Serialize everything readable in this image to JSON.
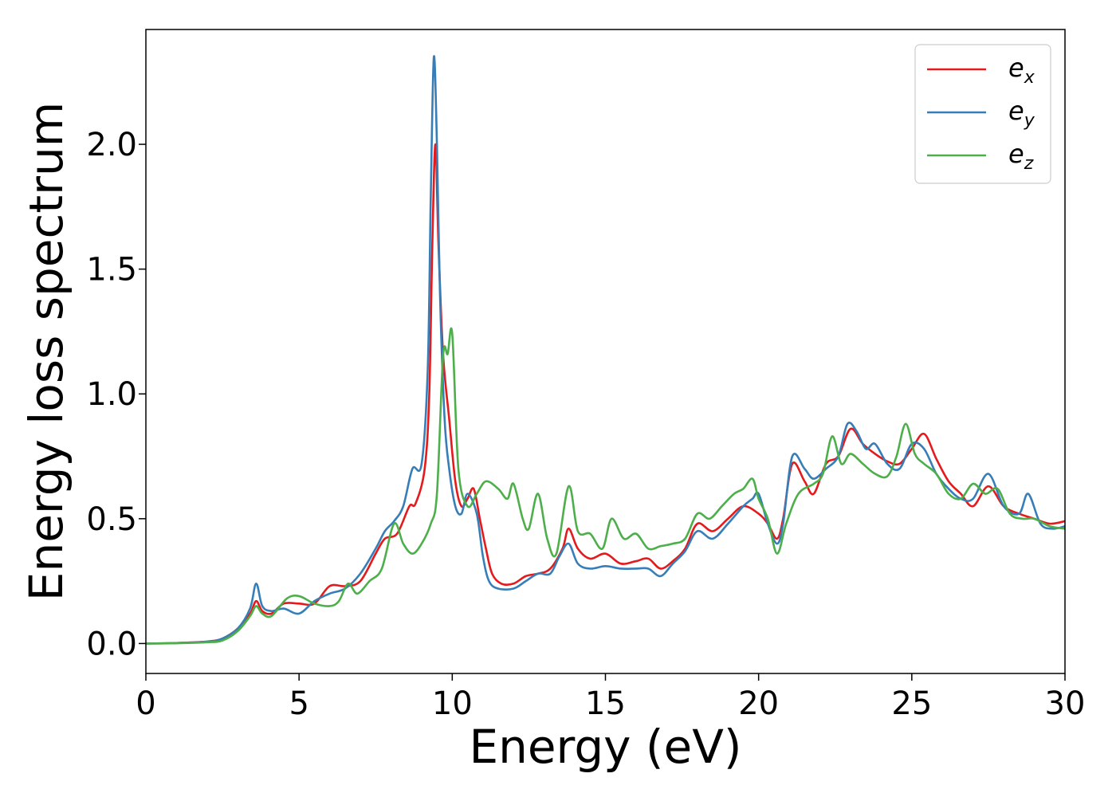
{
  "chart_data": {
    "type": "line",
    "xlabel": "Energy (eV)",
    "ylabel": "Energy loss spectrum",
    "xlim": [
      0,
      30
    ],
    "ylim": [
      -0.12,
      2.46
    ],
    "xticks": [
      0,
      5,
      10,
      15,
      20,
      25,
      30
    ],
    "xtick_labels": [
      "0",
      "5",
      "10",
      "15",
      "20",
      "25",
      "30"
    ],
    "yticks": [
      0.0,
      0.5,
      1.0,
      1.5,
      2.0
    ],
    "ytick_labels": [
      "0.0",
      "0.5",
      "1.0",
      "1.5",
      "2.0"
    ],
    "grid": false,
    "legend_position": "top-right",
    "series": [
      {
        "name": "e",
        "subscript": "x",
        "color": "#e41a1c",
        "points": [
          [
            0,
            0
          ],
          [
            1,
            0.002
          ],
          [
            2,
            0.008
          ],
          [
            2.5,
            0.02
          ],
          [
            3,
            0.06
          ],
          [
            3.4,
            0.12
          ],
          [
            3.6,
            0.17
          ],
          [
            3.8,
            0.13
          ],
          [
            4.1,
            0.12
          ],
          [
            4.5,
            0.16
          ],
          [
            5,
            0.16
          ],
          [
            5.5,
            0.16
          ],
          [
            6,
            0.23
          ],
          [
            6.5,
            0.23
          ],
          [
            7,
            0.25
          ],
          [
            7.5,
            0.36
          ],
          [
            7.8,
            0.42
          ],
          [
            8.2,
            0.44
          ],
          [
            8.6,
            0.55
          ],
          [
            8.8,
            0.56
          ],
          [
            9.1,
            0.7
          ],
          [
            9.25,
            1.0
          ],
          [
            9.35,
            1.6
          ],
          [
            9.45,
            2.0
          ],
          [
            9.55,
            1.6
          ],
          [
            9.7,
            1.16
          ],
          [
            9.9,
            0.9
          ],
          [
            10.1,
            0.65
          ],
          [
            10.3,
            0.55
          ],
          [
            10.5,
            0.58
          ],
          [
            10.7,
            0.62
          ],
          [
            10.9,
            0.5
          ],
          [
            11.1,
            0.38
          ],
          [
            11.3,
            0.28
          ],
          [
            11.6,
            0.24
          ],
          [
            12.0,
            0.24
          ],
          [
            12.4,
            0.27
          ],
          [
            12.8,
            0.28
          ],
          [
            13.2,
            0.3
          ],
          [
            13.6,
            0.38
          ],
          [
            13.8,
            0.46
          ],
          [
            14.1,
            0.38
          ],
          [
            14.5,
            0.34
          ],
          [
            15,
            0.36
          ],
          [
            15.5,
            0.32
          ],
          [
            16,
            0.33
          ],
          [
            16.4,
            0.34
          ],
          [
            16.8,
            0.3
          ],
          [
            17.2,
            0.33
          ],
          [
            17.6,
            0.38
          ],
          [
            18,
            0.48
          ],
          [
            18.5,
            0.45
          ],
          [
            19,
            0.5
          ],
          [
            19.5,
            0.55
          ],
          [
            20,
            0.52
          ],
          [
            20.3,
            0.48
          ],
          [
            20.6,
            0.42
          ],
          [
            20.8,
            0.5
          ],
          [
            21.1,
            0.72
          ],
          [
            21.5,
            0.65
          ],
          [
            21.8,
            0.6
          ],
          [
            22.2,
            0.72
          ],
          [
            22.6,
            0.75
          ],
          [
            23.0,
            0.86
          ],
          [
            23.4,
            0.8
          ],
          [
            23.8,
            0.76
          ],
          [
            24.2,
            0.73
          ],
          [
            24.6,
            0.72
          ],
          [
            25.0,
            0.78
          ],
          [
            25.4,
            0.84
          ],
          [
            25.8,
            0.74
          ],
          [
            26.2,
            0.65
          ],
          [
            26.6,
            0.6
          ],
          [
            27.0,
            0.55
          ],
          [
            27.5,
            0.63
          ],
          [
            28,
            0.55
          ],
          [
            28.5,
            0.52
          ],
          [
            29,
            0.5
          ],
          [
            29.5,
            0.48
          ],
          [
            30,
            0.49
          ]
        ]
      },
      {
        "name": "e",
        "subscript": "y",
        "color": "#377eb8",
        "points": [
          [
            0,
            0
          ],
          [
            1,
            0.002
          ],
          [
            2,
            0.007
          ],
          [
            2.5,
            0.02
          ],
          [
            3,
            0.06
          ],
          [
            3.4,
            0.14
          ],
          [
            3.6,
            0.24
          ],
          [
            3.8,
            0.15
          ],
          [
            4.1,
            0.13
          ],
          [
            4.5,
            0.14
          ],
          [
            5,
            0.12
          ],
          [
            5.5,
            0.17
          ],
          [
            6,
            0.2
          ],
          [
            6.5,
            0.22
          ],
          [
            7,
            0.28
          ],
          [
            7.5,
            0.38
          ],
          [
            7.8,
            0.45
          ],
          [
            8.1,
            0.49
          ],
          [
            8.4,
            0.55
          ],
          [
            8.7,
            0.7
          ],
          [
            9.0,
            0.72
          ],
          [
            9.2,
            1.1
          ],
          [
            9.3,
            1.8
          ],
          [
            9.4,
            2.35
          ],
          [
            9.5,
            2.0
          ],
          [
            9.6,
            1.4
          ],
          [
            9.75,
            0.9
          ],
          [
            9.9,
            0.7
          ],
          [
            10.1,
            0.55
          ],
          [
            10.3,
            0.52
          ],
          [
            10.5,
            0.6
          ],
          [
            10.8,
            0.52
          ],
          [
            11.0,
            0.35
          ],
          [
            11.2,
            0.25
          ],
          [
            11.5,
            0.22
          ],
          [
            12.0,
            0.22
          ],
          [
            12.4,
            0.25
          ],
          [
            12.8,
            0.28
          ],
          [
            13.2,
            0.28
          ],
          [
            13.5,
            0.35
          ],
          [
            13.8,
            0.4
          ],
          [
            14.1,
            0.32
          ],
          [
            14.5,
            0.3
          ],
          [
            15,
            0.31
          ],
          [
            15.5,
            0.3
          ],
          [
            16,
            0.3
          ],
          [
            16.4,
            0.3
          ],
          [
            16.8,
            0.27
          ],
          [
            17.2,
            0.32
          ],
          [
            17.6,
            0.37
          ],
          [
            18,
            0.45
          ],
          [
            18.5,
            0.42
          ],
          [
            19,
            0.48
          ],
          [
            19.5,
            0.55
          ],
          [
            19.8,
            0.58
          ],
          [
            20,
            0.6
          ],
          [
            20.3,
            0.48
          ],
          [
            20.6,
            0.4
          ],
          [
            20.8,
            0.48
          ],
          [
            21.1,
            0.75
          ],
          [
            21.5,
            0.7
          ],
          [
            21.8,
            0.66
          ],
          [
            22.2,
            0.7
          ],
          [
            22.6,
            0.75
          ],
          [
            22.9,
            0.88
          ],
          [
            23.2,
            0.85
          ],
          [
            23.5,
            0.78
          ],
          [
            23.8,
            0.8
          ],
          [
            24.2,
            0.72
          ],
          [
            24.6,
            0.7
          ],
          [
            25.0,
            0.8
          ],
          [
            25.4,
            0.78
          ],
          [
            25.8,
            0.68
          ],
          [
            26.2,
            0.62
          ],
          [
            26.6,
            0.58
          ],
          [
            27.0,
            0.58
          ],
          [
            27.5,
            0.68
          ],
          [
            28,
            0.55
          ],
          [
            28.5,
            0.52
          ],
          [
            28.8,
            0.6
          ],
          [
            29.2,
            0.48
          ],
          [
            29.6,
            0.46
          ],
          [
            30,
            0.47
          ]
        ]
      },
      {
        "name": "e",
        "subscript": "z",
        "color": "#4daf4a",
        "points": [
          [
            0,
            0
          ],
          [
            1,
            0.001
          ],
          [
            2,
            0.005
          ],
          [
            2.5,
            0.012
          ],
          [
            3,
            0.05
          ],
          [
            3.4,
            0.11
          ],
          [
            3.6,
            0.15
          ],
          [
            3.8,
            0.12
          ],
          [
            4.1,
            0.11
          ],
          [
            4.6,
            0.18
          ],
          [
            5,
            0.19
          ],
          [
            5.5,
            0.16
          ],
          [
            6,
            0.15
          ],
          [
            6.3,
            0.17
          ],
          [
            6.6,
            0.24
          ],
          [
            6.9,
            0.2
          ],
          [
            7.3,
            0.25
          ],
          [
            7.7,
            0.3
          ],
          [
            8.1,
            0.48
          ],
          [
            8.4,
            0.4
          ],
          [
            8.7,
            0.36
          ],
          [
            9.0,
            0.4
          ],
          [
            9.3,
            0.48
          ],
          [
            9.5,
            0.6
          ],
          [
            9.7,
            1.15
          ],
          [
            9.85,
            1.16
          ],
          [
            10.0,
            1.24
          ],
          [
            10.2,
            0.7
          ],
          [
            10.5,
            0.55
          ],
          [
            10.8,
            0.6
          ],
          [
            11.1,
            0.65
          ],
          [
            11.5,
            0.62
          ],
          [
            11.8,
            0.58
          ],
          [
            12.0,
            0.64
          ],
          [
            12.3,
            0.5
          ],
          [
            12.5,
            0.46
          ],
          [
            12.8,
            0.6
          ],
          [
            13.1,
            0.42
          ],
          [
            13.4,
            0.36
          ],
          [
            13.8,
            0.63
          ],
          [
            14.1,
            0.45
          ],
          [
            14.5,
            0.44
          ],
          [
            14.9,
            0.38
          ],
          [
            15.2,
            0.5
          ],
          [
            15.6,
            0.42
          ],
          [
            16,
            0.44
          ],
          [
            16.4,
            0.38
          ],
          [
            16.8,
            0.39
          ],
          [
            17.2,
            0.4
          ],
          [
            17.6,
            0.42
          ],
          [
            18,
            0.52
          ],
          [
            18.4,
            0.5
          ],
          [
            18.8,
            0.55
          ],
          [
            19.2,
            0.6
          ],
          [
            19.5,
            0.62
          ],
          [
            19.8,
            0.66
          ],
          [
            20,
            0.58
          ],
          [
            20.3,
            0.5
          ],
          [
            20.6,
            0.36
          ],
          [
            20.9,
            0.48
          ],
          [
            21.3,
            0.6
          ],
          [
            21.8,
            0.64
          ],
          [
            22.1,
            0.68
          ],
          [
            22.4,
            0.83
          ],
          [
            22.7,
            0.72
          ],
          [
            23.0,
            0.76
          ],
          [
            23.4,
            0.72
          ],
          [
            23.8,
            0.68
          ],
          [
            24.2,
            0.67
          ],
          [
            24.5,
            0.75
          ],
          [
            24.8,
            0.88
          ],
          [
            25.1,
            0.76
          ],
          [
            25.4,
            0.72
          ],
          [
            25.8,
            0.68
          ],
          [
            26.2,
            0.6
          ],
          [
            26.6,
            0.58
          ],
          [
            27.0,
            0.64
          ],
          [
            27.4,
            0.6
          ],
          [
            27.8,
            0.62
          ],
          [
            28.2,
            0.52
          ],
          [
            28.6,
            0.5
          ],
          [
            29,
            0.5
          ],
          [
            29.5,
            0.47
          ],
          [
            30,
            0.46
          ]
        ]
      }
    ]
  }
}
